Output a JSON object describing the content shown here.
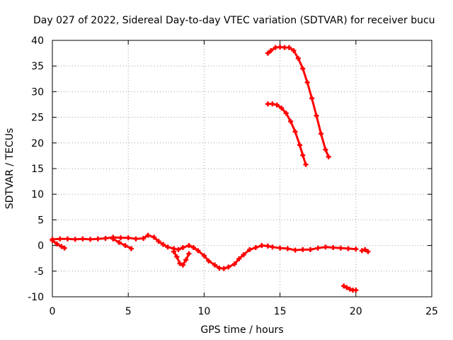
{
  "chart_data": {
    "type": "scatter",
    "title": "Day 027 of 2022, Sidereal Day-to-day VTEC variation (SDTVAR) for receiver bucu",
    "xlabel": "GPS time / hours",
    "ylabel": "SDTVAR / TECUs",
    "xlim": [
      0,
      25
    ],
    "ylim": [
      -10,
      40
    ],
    "xticks": [
      0,
      5,
      10,
      15,
      20,
      25
    ],
    "yticks": [
      -10,
      -5,
      0,
      5,
      10,
      15,
      20,
      25,
      30,
      35,
      40
    ],
    "grid": true,
    "color": "#ff0000",
    "series": [
      {
        "name": "arc-low-main",
        "x": [
          0.0,
          0.5,
          1.0,
          1.5,
          2.0,
          2.5,
          3.0,
          3.5,
          4.0,
          4.5,
          5.0,
          5.5,
          6.0,
          6.3,
          6.7,
          7.0,
          7.3,
          7.6,
          8.0,
          8.3,
          8.6,
          9.0,
          9.3,
          9.6,
          10.0,
          10.3,
          10.7,
          11.0,
          11.3,
          11.6,
          12.0,
          12.3,
          12.6,
          13.0,
          13.4,
          13.8,
          14.2,
          14.5,
          15.0,
          15.5,
          16.0,
          16.5,
          17.0,
          17.5,
          18.0,
          18.5,
          19.0,
          19.5,
          20.0
        ],
        "y": [
          1.2,
          1.3,
          1.3,
          1.2,
          1.3,
          1.2,
          1.3,
          1.4,
          1.6,
          1.5,
          1.5,
          1.3,
          1.4,
          2.0,
          1.6,
          0.8,
          0.2,
          -0.3,
          -0.6,
          -0.8,
          -0.4,
          0.0,
          -0.4,
          -1.0,
          -2.0,
          -3.0,
          -3.8,
          -4.4,
          -4.5,
          -4.2,
          -3.6,
          -2.6,
          -1.8,
          -0.8,
          -0.4,
          0.0,
          -0.1,
          -0.3,
          -0.5,
          -0.6,
          -0.9,
          -0.8,
          -0.8,
          -0.5,
          -0.3,
          -0.4,
          -0.5,
          -0.6,
          -0.7
        ]
      },
      {
        "name": "arc-low-start",
        "x": [
          0.0,
          0.3,
          0.6,
          0.8
        ],
        "y": [
          1.0,
          0.3,
          -0.2,
          -0.5
        ]
      },
      {
        "name": "arc-low-drop",
        "x": [
          4.0,
          4.4,
          4.8,
          5.2
        ],
        "y": [
          1.3,
          0.6,
          0.0,
          -0.6
        ]
      },
      {
        "name": "arc-dip",
        "x": [
          8.0,
          8.2,
          8.4,
          8.6,
          8.8,
          9.0
        ],
        "y": [
          -1.2,
          -2.2,
          -3.5,
          -3.8,
          -2.8,
          -1.6
        ]
      },
      {
        "name": "arc-tail",
        "x": [
          20.4,
          20.6,
          20.8
        ],
        "y": [
          -1.0,
          -0.8,
          -1.2
        ]
      },
      {
        "name": "arc-negative",
        "x": [
          19.2,
          19.4,
          19.6,
          19.8,
          20.0
        ],
        "y": [
          -7.9,
          -8.2,
          -8.5,
          -8.7,
          -8.7
        ]
      },
      {
        "name": "arc-high-upper",
        "x": [
          14.2,
          14.4,
          14.7,
          15.0,
          15.3,
          15.6,
          15.9,
          16.2,
          16.5,
          16.8,
          17.1,
          17.4,
          17.7,
          18.0,
          18.2
        ],
        "y": [
          37.5,
          38.0,
          38.6,
          38.7,
          38.6,
          38.6,
          38.0,
          36.5,
          34.5,
          31.8,
          28.7,
          25.3,
          21.8,
          18.7,
          17.3
        ]
      },
      {
        "name": "arc-high-lower",
        "x": [
          14.2,
          14.5,
          14.8,
          15.1,
          15.4,
          15.7,
          16.0,
          16.3,
          16.5,
          16.7
        ],
        "y": [
          27.6,
          27.6,
          27.4,
          26.8,
          25.8,
          24.2,
          22.2,
          19.6,
          17.6,
          15.8
        ]
      }
    ]
  }
}
